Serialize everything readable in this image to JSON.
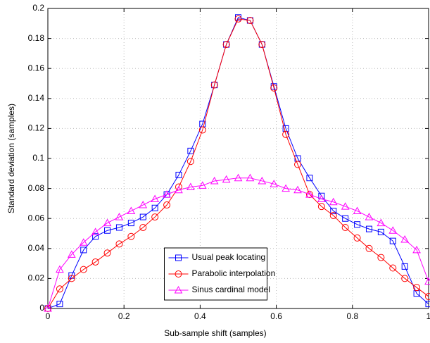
{
  "chart_data": {
    "type": "line",
    "xlabel": "Sub-sample shift (samples)",
    "ylabel": "Standard deviation (samples)",
    "x": [
      0,
      0.03125,
      0.0625,
      0.09375,
      0.125,
      0.15625,
      0.1875,
      0.21875,
      0.25,
      0.28125,
      0.3125,
      0.34375,
      0.375,
      0.40625,
      0.4375,
      0.46875,
      0.5,
      0.53125,
      0.5625,
      0.59375,
      0.625,
      0.65625,
      0.6875,
      0.71875,
      0.75,
      0.78125,
      0.8125,
      0.84375,
      0.875,
      0.90625,
      0.9375,
      0.96875,
      1
    ],
    "series": [
      {
        "name": "Usual peak locating",
        "color": "#0000ff",
        "marker": "square",
        "values": [
          0,
          0.003,
          0.022,
          0.039,
          0.048,
          0.052,
          0.054,
          0.057,
          0.061,
          0.067,
          0.076,
          0.089,
          0.105,
          0.123,
          0.149,
          0.176,
          0.194,
          0.192,
          0.176,
          0.148,
          0.12,
          0.1,
          0.087,
          0.075,
          0.065,
          0.06,
          0.056,
          0.053,
          0.051,
          0.045,
          0.028,
          0.01,
          0.003
        ]
      },
      {
        "name": "Parabolic interpolation",
        "color": "#ff0000",
        "marker": "circle",
        "values": [
          0,
          0.013,
          0.02,
          0.026,
          0.031,
          0.037,
          0.043,
          0.048,
          0.054,
          0.061,
          0.069,
          0.081,
          0.098,
          0.119,
          0.149,
          0.176,
          0.193,
          0.192,
          0.176,
          0.147,
          0.116,
          0.096,
          0.076,
          0.068,
          0.062,
          0.054,
          0.047,
          0.04,
          0.034,
          0.027,
          0.02,
          0.014,
          0.008
        ]
      },
      {
        "name": "Sinus cardinal model",
        "color": "#ff00ff",
        "marker": "triangle",
        "values": [
          0,
          0.026,
          0.036,
          0.044,
          0.051,
          0.057,
          0.061,
          0.065,
          0.069,
          0.073,
          0.076,
          0.079,
          0.081,
          0.082,
          0.085,
          0.086,
          0.087,
          0.087,
          0.085,
          0.083,
          0.08,
          0.079,
          0.076,
          0.073,
          0.071,
          0.068,
          0.065,
          0.061,
          0.057,
          0.052,
          0.046,
          0.039,
          0.018
        ]
      }
    ],
    "xlim": [
      0,
      1
    ],
    "xticks": [
      0,
      0.2,
      0.4,
      0.6,
      0.8,
      1
    ],
    "ylim": [
      0,
      0.2
    ],
    "yticks": [
      0,
      0.02,
      0.04,
      0.06,
      0.08,
      0.1,
      0.12,
      0.14,
      0.16,
      0.18,
      0.2
    ],
    "grid": true,
    "legend": "lower center"
  }
}
